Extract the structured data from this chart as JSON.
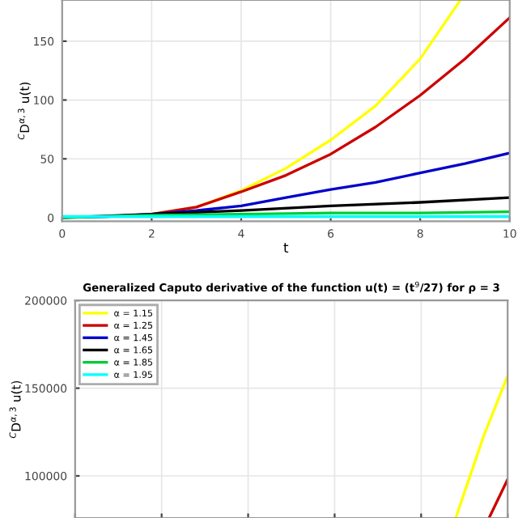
{
  "chart_data": [
    {
      "type": "line",
      "xlabel": "t",
      "ylabel": "$^{C}$D$^{α,3}$ u(t)",
      "xlim": [
        0,
        10
      ],
      "ylim": [
        -3,
        185
      ],
      "xticks": [
        0,
        2,
        4,
        6,
        8,
        10
      ],
      "yticks": [
        0,
        50,
        100,
        150
      ],
      "grid": true,
      "legend": false,
      "series": [
        {
          "color": "#ffff00",
          "x": [
            2,
            3,
            4,
            5,
            6,
            7,
            8,
            8.9
          ],
          "values": [
            3,
            9,
            23,
            42,
            66,
            95,
            135,
            185
          ]
        },
        {
          "color": "#cc0000",
          "x": [
            2,
            3,
            4,
            5,
            6,
            7,
            8,
            9,
            10
          ],
          "values": [
            3,
            9,
            22,
            36,
            54,
            77,
            104,
            135,
            170
          ]
        },
        {
          "color": "#0000cc",
          "x": [
            0,
            1,
            2,
            3,
            4,
            5,
            6,
            7,
            8,
            9,
            10
          ],
          "values": [
            0,
            1,
            3,
            6,
            10,
            17,
            24,
            30,
            38,
            46,
            55
          ]
        },
        {
          "color": "#000000",
          "x": [
            0,
            2,
            4,
            6,
            8,
            10
          ],
          "values": [
            0,
            3,
            6,
            10,
            13,
            17
          ]
        },
        {
          "color": "#00cc33",
          "x": [
            0,
            2,
            4,
            6,
            8,
            10
          ],
          "values": [
            0,
            2,
            3,
            4,
            4,
            5
          ]
        },
        {
          "color": "#00ffff",
          "x": [
            0,
            2,
            4,
            6,
            8,
            10
          ],
          "values": [
            1,
            1,
            1,
            1,
            1,
            1
          ]
        }
      ]
    },
    {
      "type": "line",
      "title": "Generalized Caputo derivative of the function u(t) = (t$^{9}$/27) for ρ = 3",
      "ylabel": "$^{C}$D$^{α,3}$ u(t)",
      "xlim": [
        0,
        10
      ],
      "ylim": [
        76000,
        200000
      ],
      "xticks": [
        0,
        2,
        4,
        6,
        8,
        10
      ],
      "yticks": [
        100000,
        150000,
        200000
      ],
      "tick_labels": "y",
      "grid": true,
      "legend": "top left",
      "series": [
        {
          "name": "α = 1.15",
          "color": "#ffff00",
          "x": [
            8.8,
            9.45,
            10
          ],
          "values": [
            76000,
            123000,
            157000
          ]
        },
        {
          "name": "α = 1.25",
          "color": "#cc0000",
          "x": [
            9.57,
            10
          ],
          "values": [
            76000,
            98000
          ]
        },
        {
          "name": "α = 1.45",
          "color": "#0000cc"
        },
        {
          "name": "α = 1.65",
          "color": "#000000"
        },
        {
          "name": "α = 1.85",
          "color": "#00cc33"
        },
        {
          "name": "α = 1.95",
          "color": "#00ffff"
        }
      ]
    }
  ]
}
